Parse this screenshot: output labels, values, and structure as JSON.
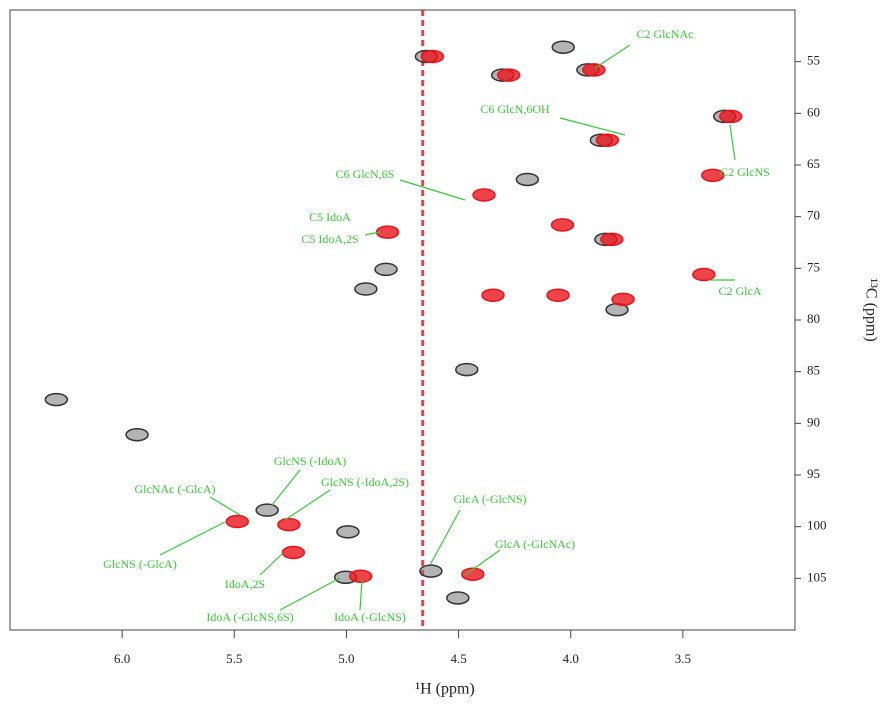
{
  "chart_data": {
    "type": "scatter",
    "x_label": "¹H (ppm)",
    "y_label": "¹³C (ppm)",
    "xlim": [
      6.5,
      3.0
    ],
    "xticks": [
      {
        "value": 6,
        "label": "6.0"
      },
      5.5,
      {
        "value": 5,
        "label": "5.0"
      },
      4.5,
      {
        "value": 4,
        "label": "4.0"
      },
      3.5
    ],
    "ylim": [
      110,
      50
    ],
    "yticks": [
      55,
      60,
      65,
      70,
      75,
      80,
      85,
      90,
      95,
      100,
      105
    ],
    "solvent_x": 4.66,
    "series": [
      {
        "color": "#333333",
        "x": [
          4.02,
          3.91,
          4.29,
          4.63,
          3.3,
          3.85,
          4.18,
          4.81,
          4.9,
          4.45,
          5.92,
          6.28,
          5.34,
          4.98,
          4.61,
          4.99,
          4.49,
          3.78,
          3.83
        ],
        "values": [
          53.6,
          55.8,
          56.3,
          54.5,
          60.3,
          62.6,
          66.4,
          75.1,
          77.0,
          84.8,
          91.1,
          87.7,
          98.4,
          100.5,
          104.3,
          104.9,
          106.9,
          79.0,
          72.2
        ]
      },
      {
        "color": "#e8141c",
        "x": [
          3.91,
          4.29,
          3.3,
          3.85,
          3.38,
          4.4,
          4.05,
          3.83,
          4.83,
          4.36,
          4.07,
          3.78,
          3.42,
          5.5,
          5.27,
          5.25,
          4.95,
          4.45,
          4.63
        ],
        "values": [
          55.8,
          56.3,
          60.3,
          62.6,
          66.0,
          67.9,
          70.8,
          72.2,
          71.5,
          77.6,
          77.6,
          78.0,
          75.6,
          99.5,
          99.8,
          102.5,
          104.8,
          104.6,
          54.5
        ]
      }
    ],
    "annotations": [
      "C2 GlcNAc",
      "C6 GlcN,6OH",
      "C2 GlcNS",
      "C6 GlcN,6S",
      "C5 IdoA",
      "C5 IdoA,2S",
      "C2 GlcA",
      "GlcNS (-IdoA)",
      "GlcNAc (-GlcA)",
      "GlcNS (-IdoA,2S)",
      "GlcNS (-GlcA)",
      "IdoA,2S",
      "IdoA (-GlcNS,6S)",
      "IdoA (-GlcNS)",
      "GlcA (-GlcNS)",
      "GlcA (-GlcNAc)"
    ]
  }
}
